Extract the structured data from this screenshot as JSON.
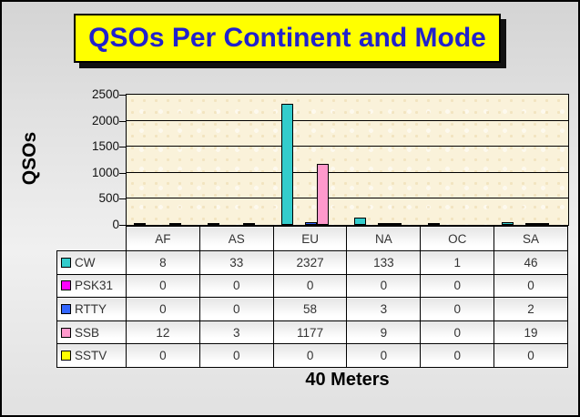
{
  "title": {
    "text": "QSOs Per Continent and Mode",
    "bg_color": "#ffff00",
    "text_color": "#2121cc"
  },
  "y_axis_label": "QSOs",
  "x_axis_title": "40 Meters",
  "chart_data": {
    "type": "bar",
    "title": "QSOs Per Continent and Mode",
    "xlabel": "40 Meters",
    "ylabel": "QSOs",
    "categories": [
      "AF",
      "AS",
      "EU",
      "NA",
      "OC",
      "SA"
    ],
    "series": [
      {
        "name": "CW",
        "color": "#33cccc",
        "values": [
          8,
          33,
          2327,
          133,
          1,
          46
        ]
      },
      {
        "name": "PSK31",
        "color": "#ff00ff",
        "values": [
          0,
          0,
          0,
          0,
          0,
          0
        ]
      },
      {
        "name": "RTTY",
        "color": "#3366ff",
        "values": [
          0,
          0,
          58,
          3,
          0,
          2
        ]
      },
      {
        "name": "SSB",
        "color": "#ff99cc",
        "values": [
          12,
          3,
          1177,
          9,
          0,
          19
        ]
      },
      {
        "name": "SSTV",
        "color": "#ffff00",
        "values": [
          0,
          0,
          0,
          0,
          0,
          0
        ]
      }
    ],
    "ylim": [
      0,
      2500
    ],
    "yticks": [
      0,
      500,
      1000,
      1500,
      2000,
      2500
    ],
    "grid": true,
    "legend_position": "data-table-left-column",
    "plot_bg": "#faf2da"
  }
}
